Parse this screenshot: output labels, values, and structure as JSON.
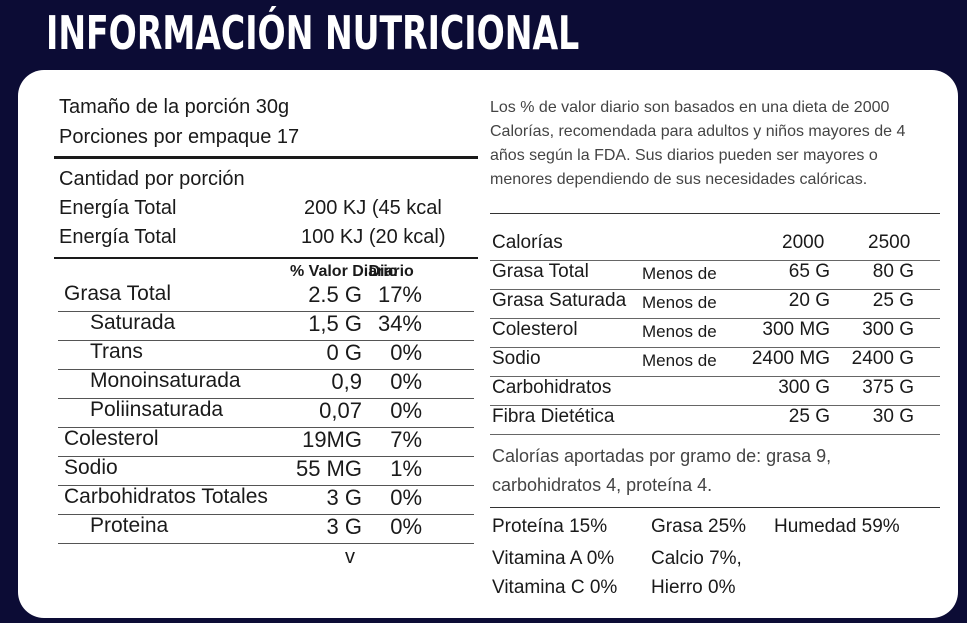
{
  "title": "INFORMACIÓN NUTRICIONAL",
  "serving": {
    "size": "Tamaño de la porción 30g",
    "per_package": "Porciones por empaque 17"
  },
  "amount": {
    "header": "Cantidad por porción",
    "energy_rows": [
      {
        "label": "Energía Total",
        "value": "200 KJ (45 kcal"
      },
      {
        "label": "Energía Total",
        "value": "100 KJ (20 kcal)"
      }
    ]
  },
  "daily_value_header": "% Valor Diario",
  "nutrients": [
    {
      "label": "Grasa Total",
      "amount": "2.5 G",
      "percent": "17%"
    },
    {
      "label": "Saturada",
      "amount": "1,5 G",
      "percent": "34%"
    },
    {
      "label": "Trans",
      "amount": "0 G",
      "percent": "0%"
    },
    {
      "label": "Monoinsaturada",
      "amount": "0,9",
      "percent": "0%"
    },
    {
      "label": "Poliinsaturada",
      "amount": "0,07",
      "percent": "0%"
    },
    {
      "label": "Colesterol",
      "amount": "19MG",
      "percent": "7%"
    },
    {
      "label": "Sodio",
      "amount": "55 MG",
      "percent": "1%"
    },
    {
      "label": "Carbohidratos Totales",
      "amount": "3 G",
      "percent": "0%"
    },
    {
      "label": "Proteina",
      "amount": "3 G",
      "percent": "0%"
    }
  ],
  "footer_mark": "v",
  "note": [
    "Los % de valor diario son basados en una dieta de 2000",
    "Calorías, recomendada para adultos y niños mayores de 4",
    "años según la FDA. Sus diarios pueden ser mayores o",
    "menores dependiendo de sus necesidades calóricas."
  ],
  "reference_table": {
    "header": {
      "label": "Calorías",
      "col1": "2000",
      "col2": "2500"
    },
    "rows": [
      {
        "label": "Grasa Total",
        "qualifier": "Menos de",
        "col1": "65 G",
        "col2": "80 G"
      },
      {
        "label": "Grasa Saturada",
        "qualifier": "Menos de",
        "col1": "20 G",
        "col2": "25 G"
      },
      {
        "label": "Colesterol",
        "qualifier": "Menos de",
        "col1": "300 MG",
        "col2": "300 G"
      },
      {
        "label": "Sodio",
        "qualifier": "Menos de",
        "col1": "2400 MG",
        "col2": "2400 G"
      },
      {
        "label": "Carbohidratos",
        "qualifier": "",
        "col1": "300 G",
        "col2": "375 G"
      },
      {
        "label": "Fibra Dietética",
        "qualifier": "",
        "col1": "25 G",
        "col2": "30 G"
      }
    ]
  },
  "calories_per_gram": [
    "Calorías aportadas por gramo de: grasa 9,",
    "carbohidratos 4, proteína 4."
  ],
  "composition": {
    "proteina": "Proteína  15%",
    "grasa": "Grasa  25%",
    "humedad": "Humedad  59%",
    "vitamina_a": "Vitamina A 0%",
    "calcio": "Calcio 7%,",
    "vitamina_c": "Vitamina C 0%",
    "hierro": "Hierro 0%"
  }
}
